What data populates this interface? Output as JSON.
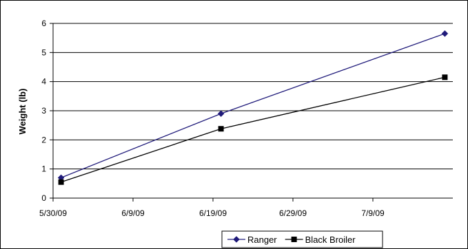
{
  "chart_data": {
    "type": "line",
    "title": "",
    "xlabel": "",
    "ylabel": "Weight (lb)",
    "x_axis_type": "date",
    "xlim": [
      "5/30/09",
      "7/19/09"
    ],
    "ylim": [
      0,
      6
    ],
    "x_ticks": [
      "5/30/09",
      "6/9/09",
      "6/19/09",
      "6/29/09",
      "7/9/09"
    ],
    "y_ticks": [
      0,
      1,
      2,
      3,
      4,
      5,
      6
    ],
    "grid": {
      "horizontal": true,
      "vertical": false
    },
    "legend": {
      "placement": "bottom-right",
      "border": true
    },
    "series": [
      {
        "name": "Ranger",
        "color": "#1f1a7a",
        "marker": "diamond",
        "points": [
          {
            "x": "5/31/09",
            "y": 0.7
          },
          {
            "x": "6/20/09",
            "y": 2.9
          },
          {
            "x": "7/18/09",
            "y": 5.65
          }
        ]
      },
      {
        "name": "Black Broiler",
        "color": "#000000",
        "marker": "square",
        "points": [
          {
            "x": "5/31/09",
            "y": 0.55
          },
          {
            "x": "6/20/09",
            "y": 2.38
          },
          {
            "x": "7/18/09",
            "y": 4.15
          }
        ]
      }
    ]
  }
}
